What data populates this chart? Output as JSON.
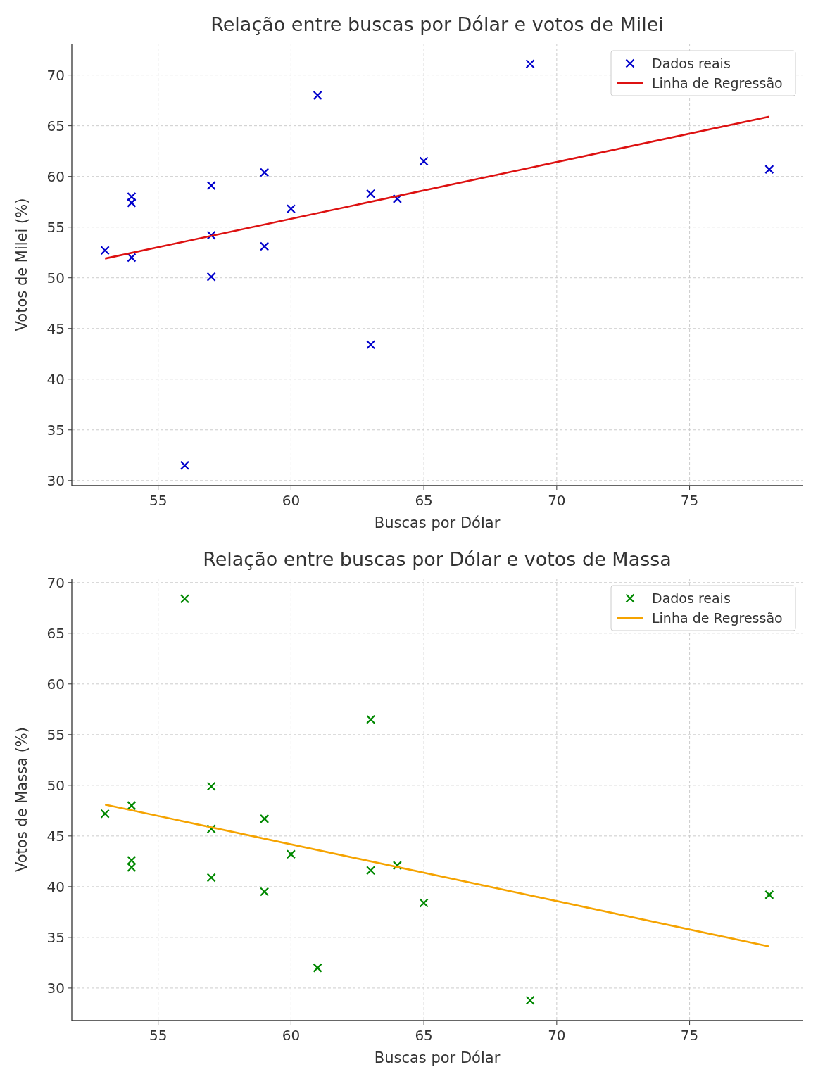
{
  "chart_data": [
    {
      "type": "scatter",
      "title": "Relação entre buscas por Dólar e votos de Milei",
      "xlabel": "Buscas por Dólar",
      "ylabel": "Votos de Milei (%)",
      "xlim": [
        51.75,
        79.25
      ],
      "xticks": [
        55,
        60,
        65,
        70,
        75
      ],
      "ylim": [
        29.5,
        73.1
      ],
      "yticks": [
        30,
        35,
        40,
        45,
        50,
        55,
        60,
        65,
        70
      ],
      "grid": true,
      "legend": "top right",
      "series": [
        {
          "name": "Dados reais",
          "marker": "cross",
          "color": "#0000cc",
          "x": [
            53,
            54,
            54,
            54,
            56,
            57,
            57,
            57,
            59,
            59,
            60,
            61,
            63,
            63,
            64,
            65,
            69,
            78
          ],
          "values": [
            52.7,
            58.0,
            57.4,
            52.0,
            31.5,
            59.1,
            54.2,
            50.1,
            60.4,
            53.1,
            56.8,
            68.0,
            58.3,
            43.4,
            57.8,
            61.5,
            71.1,
            60.7
          ]
        },
        {
          "name": "Linha de Regressão",
          "type": "line",
          "color": "#dd1111",
          "x": [
            53,
            78
          ],
          "values": [
            51.9,
            65.9
          ]
        }
      ]
    },
    {
      "type": "scatter",
      "title": "Relação entre buscas por Dólar e votos de Massa",
      "xlabel": "Buscas por Dólar",
      "ylabel": "Votos de Massa (%)",
      "xlim": [
        51.75,
        79.25
      ],
      "xticks": [
        55,
        60,
        65,
        70,
        75
      ],
      "ylim": [
        26.8,
        70.4
      ],
      "yticks": [
        30,
        35,
        40,
        45,
        50,
        55,
        60,
        65,
        70
      ],
      "grid": true,
      "legend": "top right",
      "series": [
        {
          "name": "Dados reais",
          "marker": "cross",
          "color": "#008800",
          "x": [
            53,
            54,
            54,
            54,
            56,
            57,
            57,
            57,
            59,
            59,
            60,
            61,
            63,
            63,
            64,
            65,
            69,
            78
          ],
          "values": [
            47.2,
            48.0,
            42.6,
            41.9,
            68.4,
            49.9,
            45.7,
            40.9,
            46.7,
            39.5,
            43.2,
            32.0,
            56.5,
            41.6,
            42.1,
            38.4,
            28.8,
            39.2
          ]
        },
        {
          "name": "Linha de Regressão",
          "type": "line",
          "color": "#f5a300",
          "x": [
            53,
            78
          ],
          "values": [
            48.1,
            34.1
          ]
        }
      ]
    }
  ]
}
